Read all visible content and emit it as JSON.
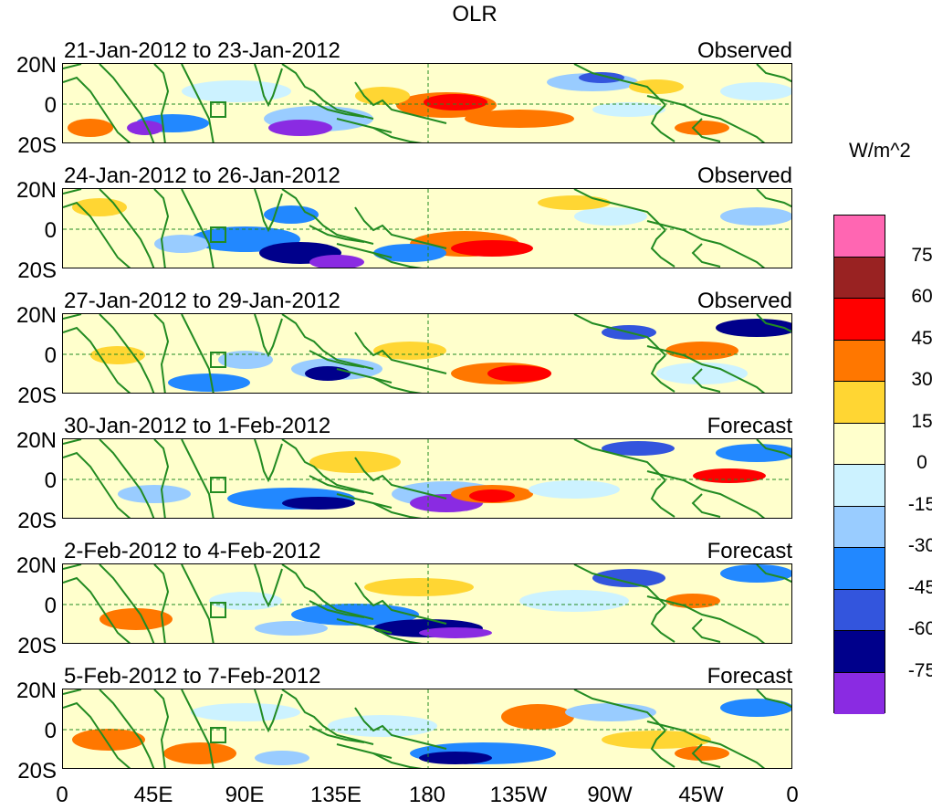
{
  "title": "OLR",
  "panels": [
    {
      "date_range": "21-Jan-2012 to 23-Jan-2012",
      "type": "Observed"
    },
    {
      "date_range": "24-Jan-2012 to 26-Jan-2012",
      "type": "Observed"
    },
    {
      "date_range": "27-Jan-2012 to 29-Jan-2012",
      "type": "Observed"
    },
    {
      "date_range": "30-Jan-2012 to 1-Feb-2012",
      "type": "Forecast"
    },
    {
      "date_range": "2-Feb-2012 to 4-Feb-2012",
      "type": "Forecast"
    },
    {
      "date_range": "5-Feb-2012 to 7-Feb-2012",
      "type": "Forecast"
    }
  ],
  "lat_labels": [
    "20N",
    "0",
    "20S"
  ],
  "lon_labels": [
    "0",
    "45E",
    "90E",
    "135E",
    "180",
    "135W",
    "90W",
    "45W",
    "0"
  ],
  "colorbar": {
    "units": "W/m^2",
    "labels": [
      "75",
      "60",
      "45",
      "30",
      "15",
      "0",
      "-15",
      "-30",
      "-45",
      "-60",
      "-75"
    ],
    "colors": [
      "#ff66b2",
      "#992222",
      "#ff0000",
      "#ff7700",
      "#ffd633",
      "#ffffcc",
      "#ccf2ff",
      "#99ccff",
      "#2288ff",
      "#3355dd",
      "#00008b",
      "#8a2be2"
    ]
  },
  "colors": {
    "coastline": "#228b22",
    "grid": "#228b22"
  }
}
